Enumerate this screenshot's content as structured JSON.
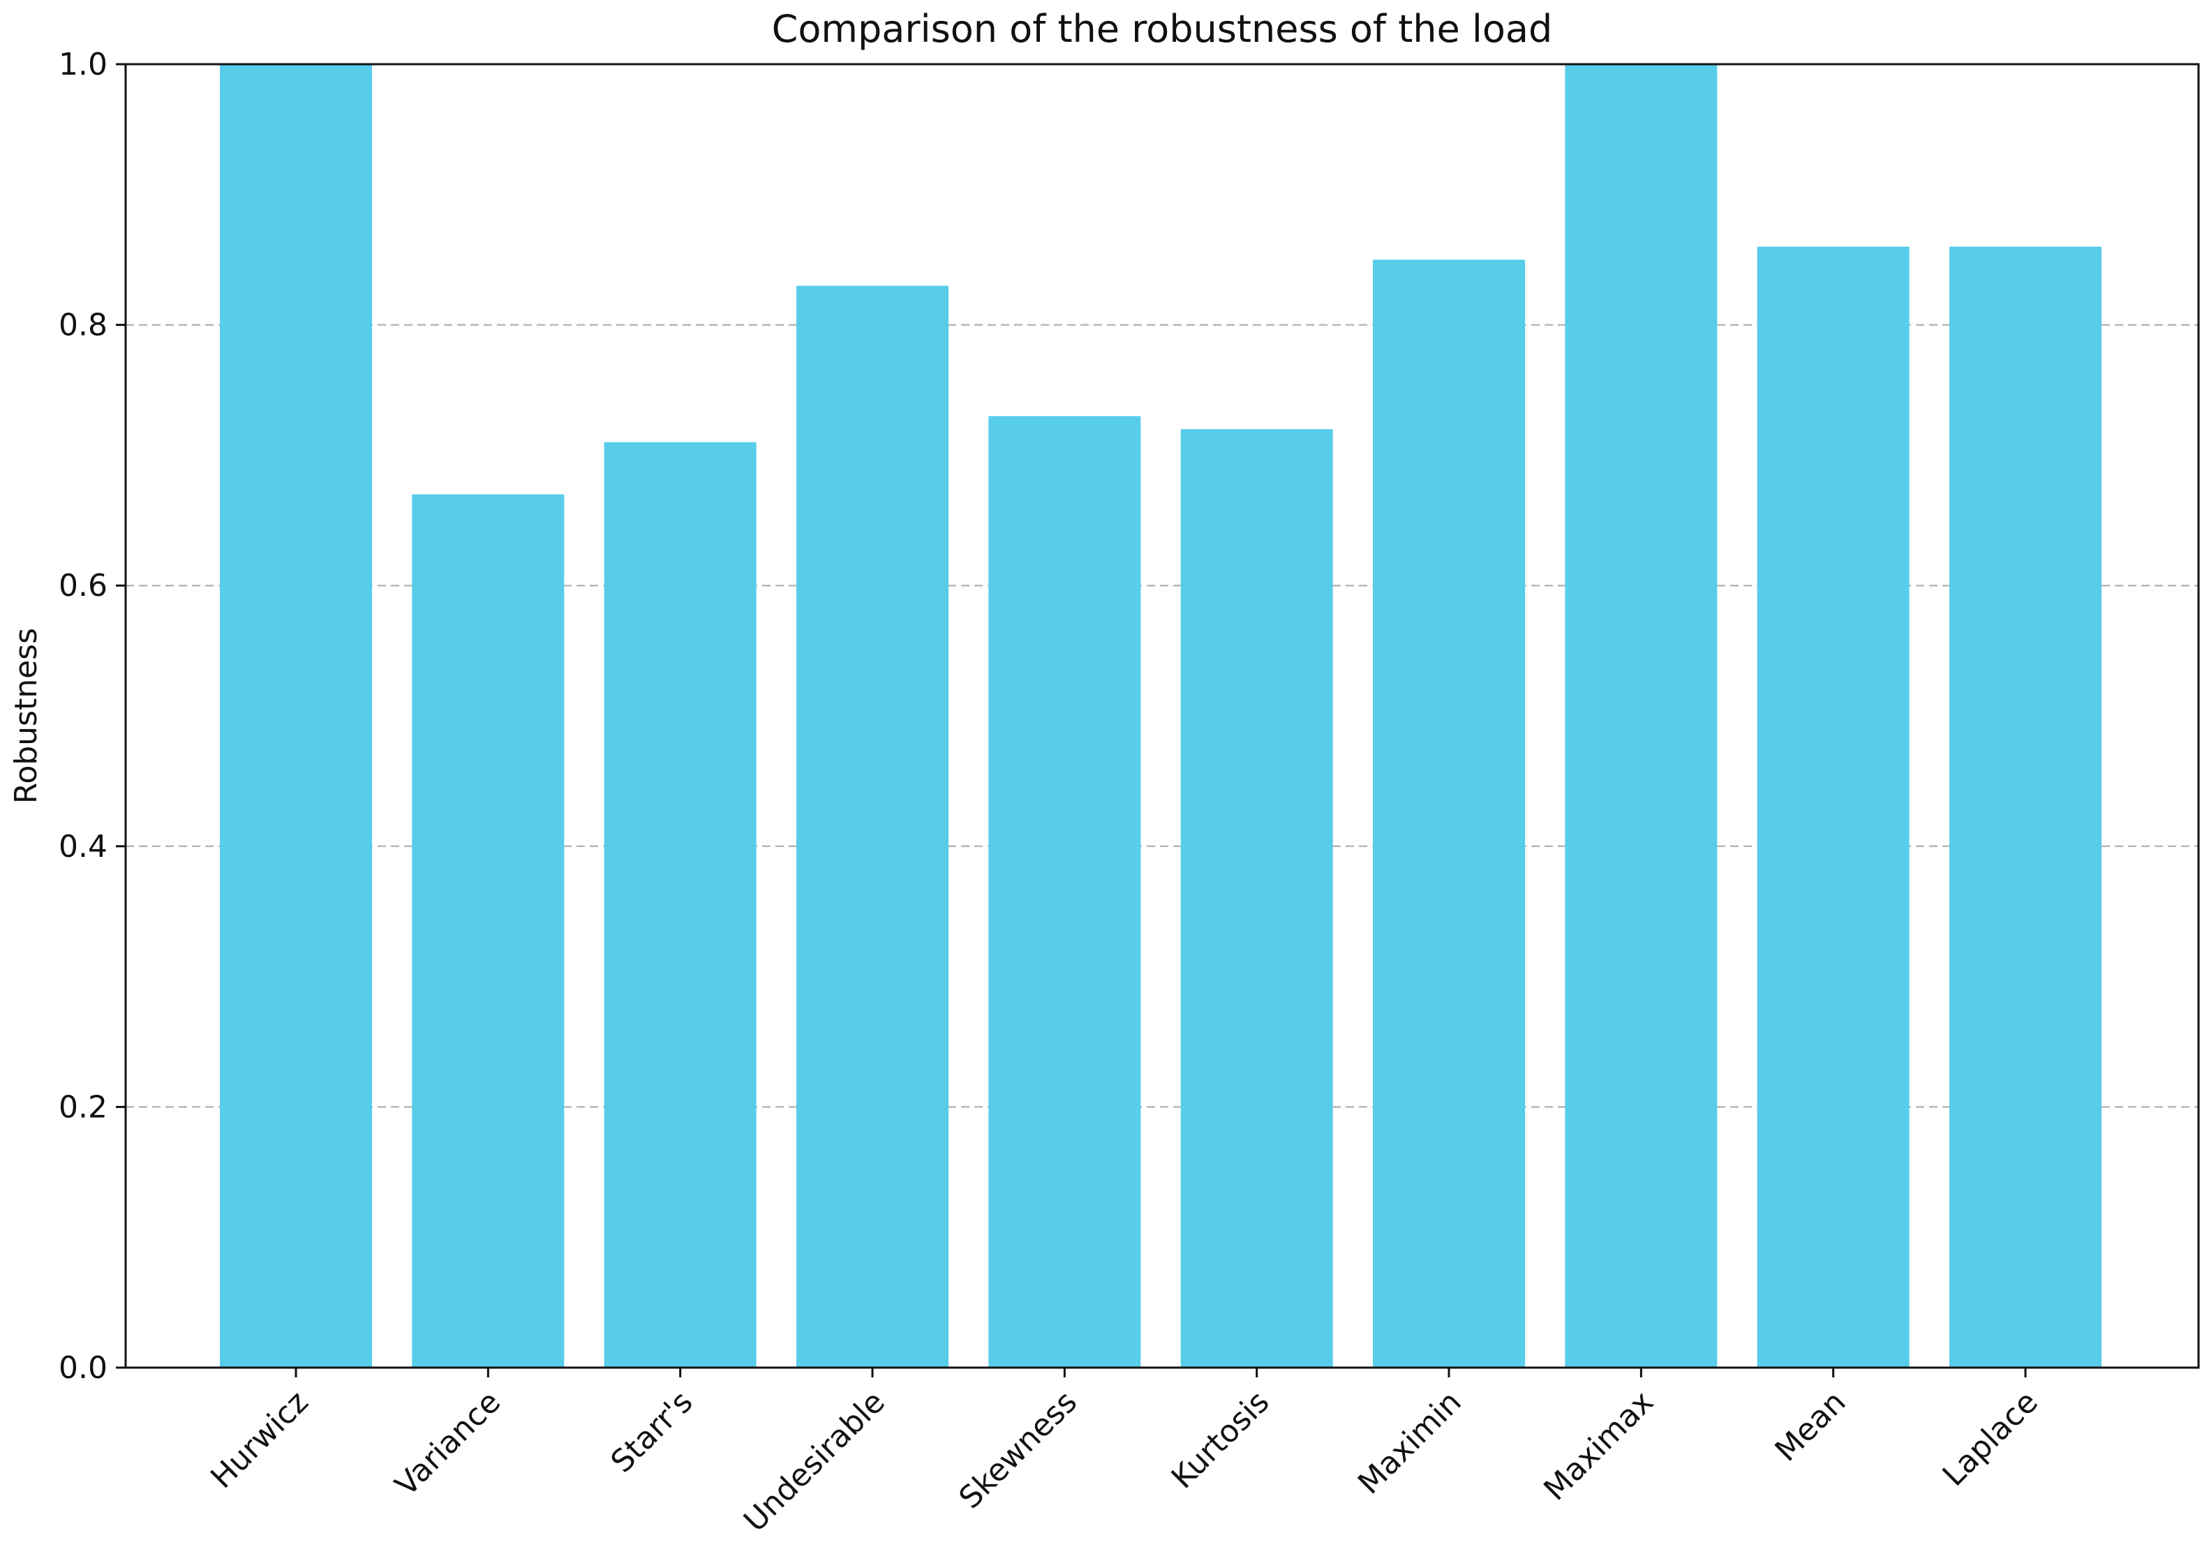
{
  "chart_data": {
    "type": "bar",
    "title": "Comparison of the robustness of the load",
    "xlabel": "",
    "ylabel": "Robustness",
    "categories": [
      "Hurwicz",
      "Variance",
      "Starr's",
      "Undesirable",
      "Skewness",
      "Kurtosis",
      "Maximin",
      "Maximax",
      "Mean",
      "Laplace"
    ],
    "values": [
      1.0,
      0.67,
      0.71,
      0.83,
      0.73,
      0.72,
      0.85,
      1.0,
      0.86,
      0.86
    ],
    "ylim": [
      0,
      1.0
    ],
    "yticks": [
      "0.0",
      "0.2",
      "0.4",
      "0.6",
      "0.8",
      "1.0"
    ],
    "grid": "horizontal dashed",
    "bar_color": "#57cdea",
    "grid_color": "#b8b8b8",
    "axis_color": "#111111"
  }
}
